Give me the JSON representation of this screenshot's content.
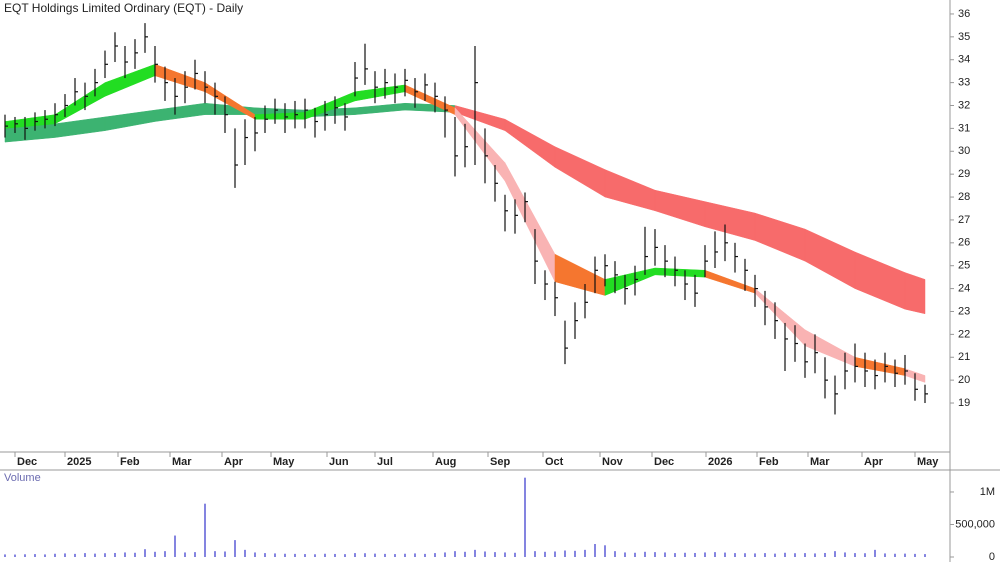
{
  "chart_data": {
    "type": "candlestick",
    "title": "EQT Holdings Limited Ordinary (EQT) - Daily",
    "bar_color": "#111111",
    "xlim": [
      -0.5,
      94.5
    ],
    "xticks": [
      {
        "value": 1,
        "label": "Dec"
      },
      {
        "value": 6,
        "label": "2025"
      },
      {
        "value": 11.3,
        "label": "Feb"
      },
      {
        "value": 16.5,
        "label": "Mar"
      },
      {
        "value": 21.7,
        "label": "Apr"
      },
      {
        "value": 26.6,
        "label": "May"
      },
      {
        "value": 32.2,
        "label": "Jun"
      },
      {
        "value": 37,
        "label": "Jul"
      },
      {
        "value": 42.8,
        "label": "Aug"
      },
      {
        "value": 48.3,
        "label": "Sep"
      },
      {
        "value": 53.8,
        "label": "Oct"
      },
      {
        "value": 59.5,
        "label": "Nov"
      },
      {
        "value": 64.7,
        "label": "Dec"
      },
      {
        "value": 70.1,
        "label": "2026"
      },
      {
        "value": 75.2,
        "label": "Feb"
      },
      {
        "value": 80.3,
        "label": "Mar"
      },
      {
        "value": 85.7,
        "label": "Apr"
      },
      {
        "value": 91,
        "label": "May"
      }
    ],
    "ylim": [
      16.86,
      36.61
    ],
    "yticks": [
      19,
      20,
      21,
      22,
      23,
      24,
      25,
      26,
      27,
      28,
      29,
      30,
      31,
      32,
      33,
      34,
      35,
      36
    ],
    "close": [
      31.1,
      31.2,
      31.0,
      31.3,
      31.4,
      31.6,
      32.0,
      32.6,
      32.4,
      33.0,
      33.8,
      34.6,
      33.9,
      34.3,
      35.0,
      33.8,
      33.0,
      32.4,
      32.8,
      33.4,
      32.8,
      32.4,
      31.6,
      29.4,
      30.6,
      30.8,
      31.4,
      31.8,
      31.5,
      31.6,
      31.8,
      31.3,
      31.6,
      31.9,
      31.5,
      33.2,
      33.6,
      32.8,
      33.0,
      32.8,
      33.1,
      32.6,
      32.9,
      32.4,
      31.8,
      29.8,
      30.2,
      33.0,
      29.8,
      28.6,
      27.4,
      27.2,
      27.8,
      25.2,
      24.2,
      23.6,
      21.4,
      22.6,
      23.4,
      24.8,
      25.0,
      24.6,
      24.0,
      24.4,
      25.4,
      25.8,
      25.2,
      24.8,
      24.2,
      23.8,
      25.2,
      25.6,
      26.0,
      25.4,
      24.8,
      24.0,
      23.2,
      22.6,
      21.8,
      21.6,
      20.8,
      21.2,
      20.0,
      19.4,
      20.4,
      20.6,
      20.4,
      20.2,
      20.6,
      20.3,
      20.4,
      19.6,
      19.4
    ],
    "high": [
      31.6,
      31.5,
      31.5,
      31.7,
      31.8,
      32.1,
      32.5,
      33.2,
      33.0,
      33.6,
      34.4,
      35.2,
      34.6,
      34.9,
      35.6,
      34.6,
      33.7,
      33.2,
      33.5,
      34.0,
      33.5,
      33.0,
      32.4,
      31.0,
      31.4,
      31.5,
      32.0,
      32.3,
      32.1,
      32.2,
      32.3,
      31.9,
      32.2,
      32.4,
      32.1,
      33.9,
      34.7,
      33.5,
      33.6,
      33.4,
      33.6,
      33.2,
      33.4,
      33.0,
      32.4,
      31.5,
      31.2,
      34.6,
      31.0,
      29.4,
      28.1,
      27.9,
      28.2,
      26.6,
      24.8,
      24.3,
      22.6,
      23.4,
      24.2,
      25.4,
      25.5,
      25.2,
      24.6,
      25.0,
      26.7,
      26.6,
      25.9,
      25.4,
      24.8,
      24.6,
      25.9,
      26.5,
      26.8,
      26.0,
      25.3,
      24.6,
      23.9,
      23.4,
      22.5,
      22.4,
      21.6,
      22.0,
      21.0,
      20.2,
      21.2,
      21.6,
      21.2,
      20.9,
      21.2,
      20.9,
      21.1,
      20.3,
      19.8
    ],
    "low": [
      30.6,
      30.8,
      30.5,
      30.9,
      31.0,
      31.1,
      31.5,
      32.0,
      31.8,
      32.4,
      33.2,
      33.9,
      33.2,
      33.6,
      34.3,
      33.0,
      32.2,
      31.6,
      32.1,
      32.7,
      32.1,
      31.6,
      30.8,
      28.4,
      29.4,
      30.0,
      30.8,
      31.2,
      30.8,
      31.0,
      31.0,
      30.6,
      30.9,
      31.2,
      30.9,
      32.4,
      32.9,
      32.1,
      32.3,
      32.1,
      32.4,
      31.9,
      32.2,
      31.7,
      30.6,
      28.9,
      29.3,
      29.4,
      28.6,
      27.8,
      26.5,
      26.4,
      26.9,
      24.2,
      23.5,
      22.8,
      20.7,
      21.8,
      22.7,
      23.8,
      24.1,
      23.8,
      23.3,
      23.7,
      24.6,
      25.0,
      24.5,
      24.1,
      23.5,
      23.2,
      24.5,
      24.9,
      25.2,
      24.7,
      23.9,
      23.2,
      22.4,
      21.8,
      20.4,
      20.8,
      20.1,
      20.3,
      19.2,
      18.5,
      19.6,
      19.9,
      19.7,
      19.6,
      19.9,
      19.7,
      19.8,
      19.1,
      19.0
    ],
    "ribbons": [
      {
        "x": [
          0,
          5,
          10,
          15,
          20,
          25,
          30,
          35,
          40,
          45,
          50,
          55,
          60,
          65,
          70,
          75,
          80,
          85,
          90,
          92
        ],
        "upper": [
          31.1,
          31.2,
          31.5,
          31.8,
          32.1,
          31.9,
          31.8,
          31.9,
          32.1,
          32.0,
          31.4,
          30.2,
          29.2,
          28.3,
          27.8,
          27.3,
          26.6,
          25.6,
          24.7,
          24.4
        ],
        "lower": [
          30.4,
          30.6,
          30.9,
          31.3,
          31.6,
          31.6,
          31.5,
          31.6,
          31.8,
          31.7,
          30.9,
          29.3,
          28.0,
          27.4,
          26.7,
          26.1,
          25.2,
          24.0,
          23.1,
          22.9
        ],
        "colors": [
          "#3cb371",
          "#3cb371",
          "#3cb371",
          "#3cb371",
          "#3cb371",
          "#3cb371",
          "#3cb371",
          "#3cb371",
          "#3cb371",
          "#f76b6b",
          "#f76b6b",
          "#f76b6b",
          "#f76b6b",
          "#f76b6b",
          "#f76b6b",
          "#f76b6b",
          "#f76b6b",
          "#f76b6b",
          "#f76b6b"
        ]
      },
      {
        "x": [
          0,
          5,
          10,
          15,
          20,
          25,
          30,
          35,
          40,
          45,
          50,
          55,
          60,
          65,
          70,
          75,
          80,
          85,
          90,
          92
        ],
        "upper": [
          31.3,
          31.6,
          33.0,
          33.8,
          33.0,
          31.6,
          31.7,
          32.6,
          32.9,
          31.9,
          29.5,
          25.5,
          24.4,
          24.9,
          24.8,
          24.0,
          22.2,
          21.0,
          20.5,
          20.2
        ],
        "lower": [
          31.0,
          31.2,
          32.4,
          33.3,
          32.6,
          31.4,
          31.4,
          32.2,
          32.6,
          31.6,
          28.7,
          24.3,
          23.7,
          24.6,
          24.5,
          23.8,
          21.5,
          20.6,
          20.2,
          19.9
        ],
        "colors": [
          "#22dd22",
          "#22dd22",
          "#22dd22",
          "#f5762f",
          "#f5762f",
          "#22dd22",
          "#22dd22",
          "#22dd22",
          "#f5762f",
          "#f9b3b3",
          "#f9b3b3",
          "#f5762f",
          "#22dd22",
          "#22dd22",
          "#f5762f",
          "#f9b3b3",
          "#f9b3b3",
          "#f5762f",
          "#f9b3b3"
        ]
      }
    ],
    "volume": {
      "title": "Volume",
      "color": "#5b5bd6",
      "ylim": [
        0,
        1338000
      ],
      "yticks": [
        0,
        {
          "value": 500000,
          "label": "500,000"
        },
        {
          "value": 1000000,
          "label": "1M"
        }
      ],
      "values": [
        40000,
        38000,
        42000,
        45000,
        40000,
        50000,
        55000,
        48000,
        60000,
        52000,
        58000,
        62000,
        70000,
        65000,
        120000,
        80000,
        90000,
        330000,
        70000,
        75000,
        820000,
        90000,
        85000,
        260000,
        110000,
        70000,
        60000,
        55000,
        50000,
        48000,
        45000,
        42000,
        50000,
        47000,
        44000,
        60000,
        58000,
        52000,
        48000,
        45000,
        50000,
        55000,
        48000,
        60000,
        70000,
        90000,
        80000,
        110000,
        85000,
        75000,
        70000,
        65000,
        1220000,
        90000,
        80000,
        85000,
        100000,
        95000,
        110000,
        200000,
        180000,
        90000,
        70000,
        65000,
        80000,
        75000,
        70000,
        60000,
        65000,
        62000,
        70000,
        75000,
        68000,
        60000,
        58000,
        55000,
        60000,
        52000,
        65000,
        58000,
        60000,
        55000,
        62000,
        90000,
        70000,
        60000,
        58000,
        110000,
        55000,
        50000,
        52000,
        48000,
        45000
      ]
    }
  }
}
